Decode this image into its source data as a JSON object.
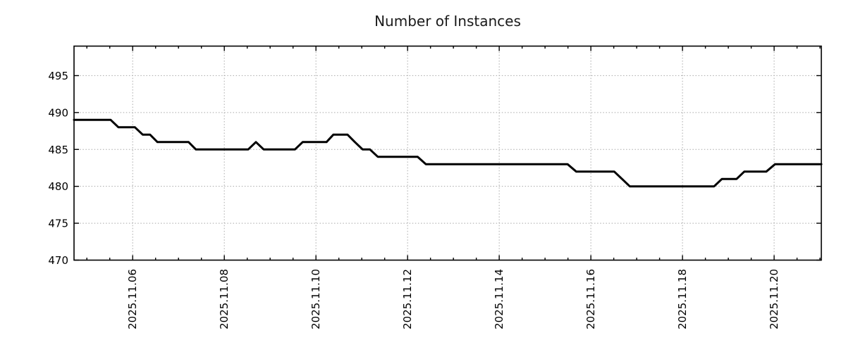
{
  "header": {
    "title": "Number of Instances"
  },
  "colors": {
    "background": "#ffffff",
    "line": "#000000",
    "border": "#000000",
    "grid": "#a8a8a8",
    "text": "#000000",
    "title": "#1a1a1a"
  },
  "chart_data": {
    "type": "line",
    "title": "Number of Instances",
    "xlabel": "",
    "ylabel": "",
    "legend": false,
    "grid": true,
    "x_unit": "day of November 2025 (fractional)",
    "xlim": [
      4.72,
      21.03
    ],
    "ylim": [
      470,
      499
    ],
    "y_ticks": [
      470,
      475,
      480,
      485,
      490,
      495
    ],
    "x_major_ticks": [
      {
        "day": 6,
        "label": "2025.11.06"
      },
      {
        "day": 8,
        "label": "2025.11.08"
      },
      {
        "day": 10,
        "label": "2025.11.10"
      },
      {
        "day": 12,
        "label": "2025.11.12"
      },
      {
        "day": 14,
        "label": "2025.11.14"
      },
      {
        "day": 16,
        "label": "2025.11.16"
      },
      {
        "day": 18,
        "label": "2025.11.18"
      },
      {
        "day": 20,
        "label": "2025.11.20"
      }
    ],
    "x_minor_tick_interval_days": 0.5,
    "series": [
      {
        "name": "instances",
        "points": [
          [
            4.72,
            489
          ],
          [
            5.52,
            489
          ],
          [
            5.69,
            488
          ],
          [
            6.05,
            488
          ],
          [
            6.22,
            487
          ],
          [
            6.38,
            487
          ],
          [
            6.54,
            486
          ],
          [
            7.22,
            486
          ],
          [
            7.38,
            485
          ],
          [
            8.52,
            485
          ],
          [
            8.69,
            486
          ],
          [
            8.86,
            485
          ],
          [
            9.54,
            485
          ],
          [
            9.71,
            486
          ],
          [
            10.23,
            486
          ],
          [
            10.38,
            487
          ],
          [
            10.69,
            487
          ],
          [
            10.85,
            486
          ],
          [
            11.02,
            485
          ],
          [
            11.18,
            485
          ],
          [
            11.35,
            484
          ],
          [
            12.22,
            484
          ],
          [
            12.4,
            483
          ],
          [
            15.49,
            483
          ],
          [
            15.68,
            482
          ],
          [
            16.51,
            482
          ],
          [
            16.68,
            481
          ],
          [
            16.85,
            480
          ],
          [
            18.69,
            480
          ],
          [
            18.86,
            481
          ],
          [
            19.18,
            481
          ],
          [
            19.35,
            482
          ],
          [
            19.83,
            482
          ],
          [
            20.02,
            483
          ],
          [
            21.03,
            483
          ]
        ]
      }
    ]
  }
}
